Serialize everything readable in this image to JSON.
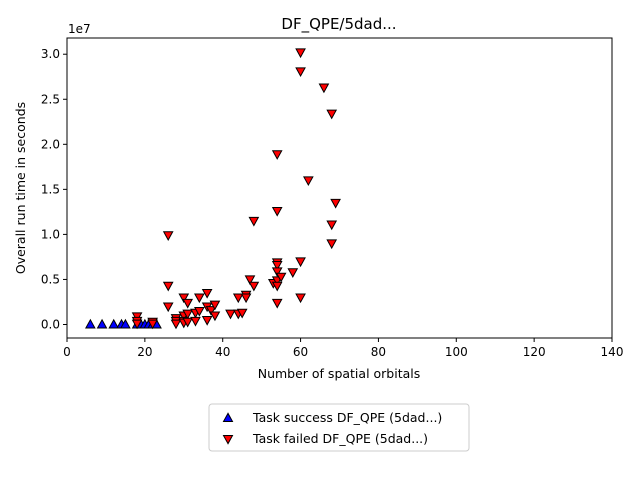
{
  "chart_data": {
    "type": "scatter",
    "title": "DF_QPE/5dad...",
    "xlabel": "Number of spatial orbitals",
    "ylabel": "Overall run time in seconds",
    "y_offset_label": "1e7",
    "xlim": [
      0,
      140
    ],
    "ylim": [
      -1500000,
      31800000
    ],
    "xticks": [
      0,
      20,
      40,
      60,
      80,
      100,
      120,
      140
    ],
    "xtick_labels": [
      "0",
      "20",
      "40",
      "60",
      "80",
      "100",
      "120",
      "140"
    ],
    "yticks": [
      0,
      5000000,
      10000000,
      15000000,
      20000000,
      25000000,
      30000000
    ],
    "ytick_labels": [
      "0.0",
      "0.5",
      "1.0",
      "1.5",
      "2.0",
      "2.5",
      "3.0"
    ],
    "grid": false,
    "legend_position": "below-center",
    "series": [
      {
        "name": "Task success DF_QPE (5dad...)",
        "marker": "triangle-up",
        "color": "#0000ff",
        "points": [
          [
            6,
            0
          ],
          [
            9,
            0
          ],
          [
            12,
            0
          ],
          [
            14,
            0
          ],
          [
            15,
            0
          ],
          [
            18,
            0
          ],
          [
            19,
            0
          ],
          [
            20,
            0
          ],
          [
            21,
            0
          ],
          [
            22,
            0
          ],
          [
            23,
            0
          ]
        ]
      },
      {
        "name": "Task failed DF_QPE (5dad...)",
        "marker": "triangle-down",
        "color": "#ff0000",
        "points": [
          [
            18,
            900000
          ],
          [
            18,
            400000
          ],
          [
            18,
            100000
          ],
          [
            22,
            300000
          ],
          [
            22,
            100000
          ],
          [
            26,
            9900000
          ],
          [
            26,
            4300000
          ],
          [
            26,
            2000000
          ],
          [
            28,
            700000
          ],
          [
            28,
            400000
          ],
          [
            28,
            100000
          ],
          [
            30,
            3000000
          ],
          [
            30,
            1000000
          ],
          [
            30,
            400000
          ],
          [
            30,
            200000
          ],
          [
            31,
            2400000
          ],
          [
            31,
            1200000
          ],
          [
            31,
            300000
          ],
          [
            33,
            1300000
          ],
          [
            33,
            400000
          ],
          [
            34,
            3000000
          ],
          [
            34,
            1500000
          ],
          [
            36,
            3500000
          ],
          [
            36,
            2000000
          ],
          [
            36,
            500000
          ],
          [
            37,
            1600000
          ],
          [
            38,
            2200000
          ],
          [
            38,
            1000000
          ],
          [
            42,
            1200000
          ],
          [
            44,
            3000000
          ],
          [
            44,
            1200000
          ],
          [
            45,
            1300000
          ],
          [
            46,
            3300000
          ],
          [
            46,
            3000000
          ],
          [
            47,
            5000000
          ],
          [
            48,
            11500000
          ],
          [
            48,
            4300000
          ],
          [
            53,
            4600000
          ],
          [
            54,
            18900000
          ],
          [
            54,
            12600000
          ],
          [
            54,
            6900000
          ],
          [
            54,
            6600000
          ],
          [
            54,
            5900000
          ],
          [
            54,
            4900000
          ],
          [
            54,
            4300000
          ],
          [
            54,
            2400000
          ],
          [
            55,
            5300000
          ],
          [
            58,
            5800000
          ],
          [
            60,
            30200000
          ],
          [
            60,
            28100000
          ],
          [
            60,
            7000000
          ],
          [
            60,
            3000000
          ],
          [
            62,
            16000000
          ],
          [
            66,
            26300000
          ],
          [
            68,
            23400000
          ],
          [
            68,
            11100000
          ],
          [
            68,
            9000000
          ],
          [
            69,
            13500000
          ]
        ]
      }
    ]
  }
}
